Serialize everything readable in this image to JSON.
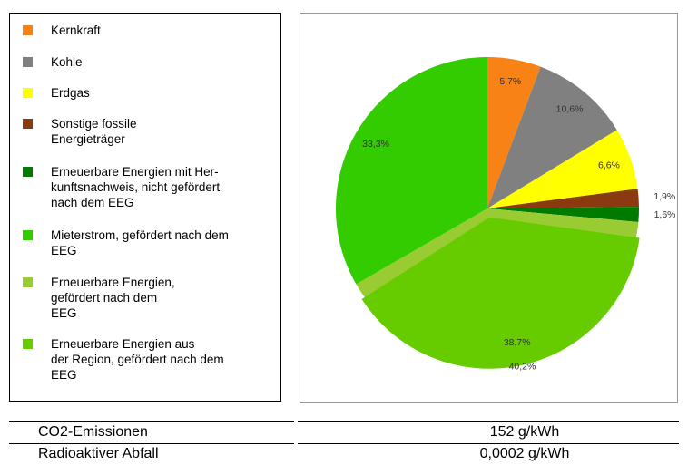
{
  "chart_data": {
    "type": "pie",
    "categories": [
      "Kernkraft",
      "Kohle",
      "Erdgas",
      "Sonstige fossile\nEnergieträger",
      "Erneuerbare Energien mit Her-\nkunftsnachweis, nicht gefördert\nnach dem EEG",
      "Mieterstrom, gefördert nach dem\nEEG",
      "Erneuerbare Energien,\ngefördert nach dem\nEEG",
      "Erneuerbare Energien aus\nder Region, gefördert nach dem\nEEG"
    ],
    "values": [
      5.7,
      10.6,
      6.6,
      1.9,
      1.6,
      33.3,
      40.2,
      38.7
    ],
    "value_labels": [
      "5,7%",
      "10,6%",
      "6,6%",
      "1,9%",
      "1,6%",
      "33,3%",
      "40,2%",
      "38,7%"
    ],
    "colors": [
      "#f98216",
      "#808080",
      "#ffff00",
      "#8b3a0f",
      "#007a00",
      "#33cc00",
      "#99cc33",
      "#66cc00"
    ]
  },
  "table": {
    "rows": [
      [
        "CO2-Emissionen",
        "152 g/kWh"
      ],
      [
        "Radioaktiver Abfall",
        "0,0002 g/kWh"
      ]
    ]
  }
}
